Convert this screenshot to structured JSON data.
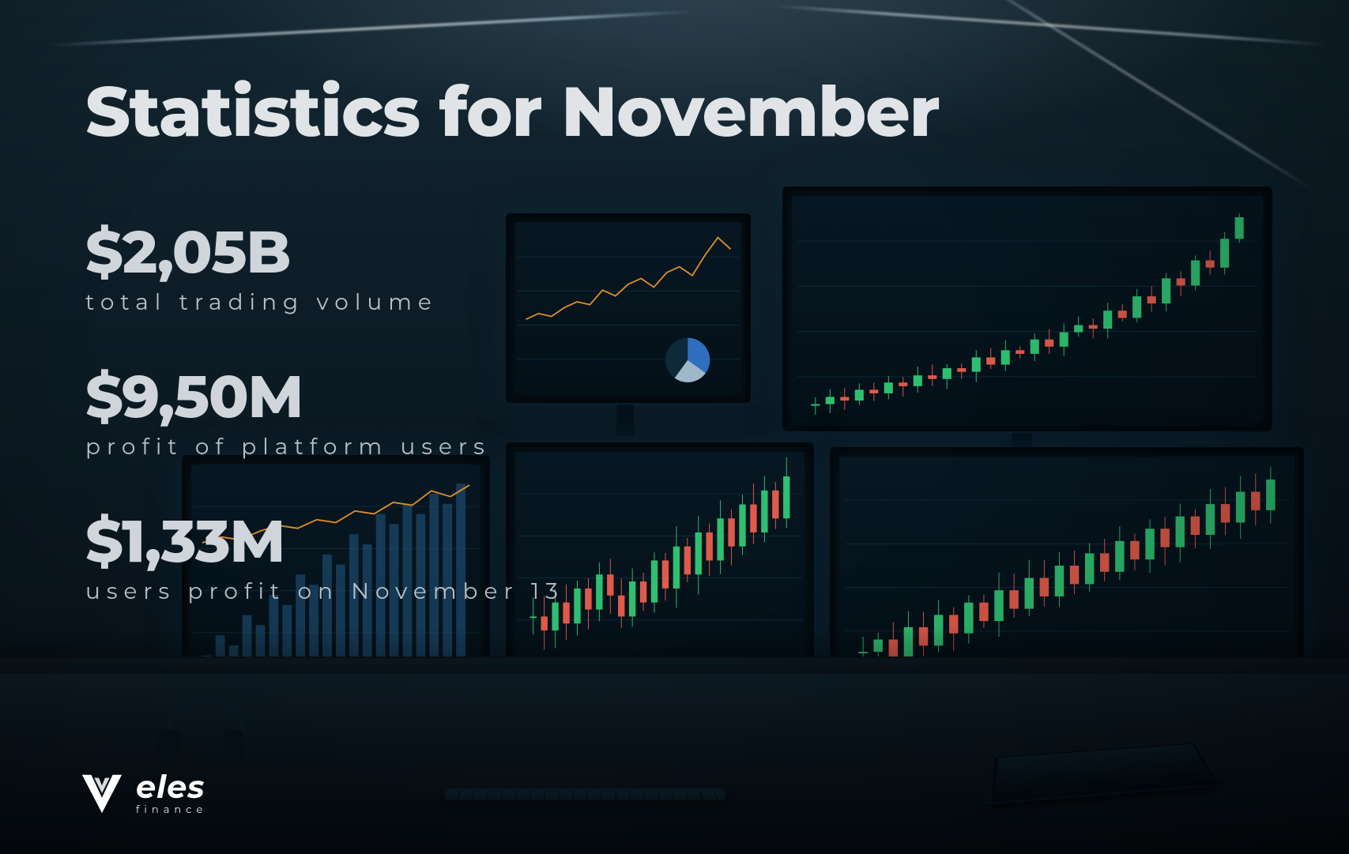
{
  "title": "Statistics for November",
  "stats": [
    {
      "value": "$2,05B",
      "label": "total trading volume"
    },
    {
      "value": "$9,50M",
      "label": "profit of platform users"
    },
    {
      "value": "$1,33M",
      "label": "users profit on November 13"
    }
  ],
  "logo": {
    "brand": "eles",
    "prefix_letter": "V",
    "subtext": "finance"
  },
  "colors": {
    "text_primary": "#e0e4e7",
    "text_secondary": "#b9c0c6",
    "chart_green": "#2fbf71",
    "chart_red": "#e05a4a",
    "chart_orange": "#d88b2a",
    "chart_line": "#9fb8c9",
    "screen_bg": "#071722"
  },
  "charts": {
    "top_left": {
      "type": "line",
      "color": "#d88b2a",
      "points": [
        12,
        14,
        13,
        16,
        18,
        17,
        22,
        20,
        24,
        26,
        23,
        28,
        30,
        27,
        34,
        40,
        36
      ],
      "ylim": [
        10,
        42
      ]
    },
    "top_left_pie": {
      "type": "pie",
      "slices": [
        35,
        25,
        40
      ],
      "slice_colors": [
        "#2f6fbf",
        "#9fb8c9",
        "#0e2a3a"
      ]
    },
    "top_right": {
      "type": "candlestick",
      "green": "#2fbf71",
      "red": "#e05a4a",
      "values": [
        20,
        22,
        21,
        24,
        23,
        26,
        25,
        28,
        27,
        30,
        29,
        33,
        31,
        35,
        34,
        38,
        36,
        40,
        42,
        41,
        46,
        44,
        50,
        48,
        55,
        53,
        60,
        58,
        66,
        72
      ],
      "ylim": [
        18,
        75
      ]
    },
    "bottom_left": {
      "type": "mixed",
      "line_color": "#d88b2a",
      "line_points": [
        22,
        24,
        23,
        26,
        28,
        27,
        30,
        29,
        33,
        32,
        36,
        35,
        40,
        38,
        42
      ],
      "bar_values": [
        10,
        14,
        12,
        18,
        16,
        22,
        20,
        26,
        24,
        30,
        28,
        34,
        32,
        38,
        36,
        40,
        38,
        42,
        40,
        44
      ],
      "bar_color": "#1c4a6e",
      "ylim": [
        8,
        46
      ]
    },
    "bottom_mid": {
      "type": "candlestick",
      "green": "#2fbf71",
      "red": "#e05a4a",
      "values": [
        40,
        38,
        42,
        39,
        44,
        41,
        46,
        43,
        40,
        45,
        42,
        48,
        44,
        50,
        46,
        52,
        48,
        54,
        50,
        56,
        52,
        58,
        54,
        60
      ],
      "ylim": [
        35,
        62
      ]
    },
    "bottom_right": {
      "type": "candlestick",
      "green": "#2fbf71",
      "red": "#e05a4a",
      "values": [
        30,
        32,
        29,
        34,
        31,
        36,
        33,
        38,
        35,
        40,
        37,
        42,
        39,
        44,
        41,
        46,
        43,
        48,
        45,
        50,
        47,
        52,
        49,
        54,
        51,
        56,
        53,
        58
      ],
      "ylim": [
        28,
        60
      ]
    }
  }
}
